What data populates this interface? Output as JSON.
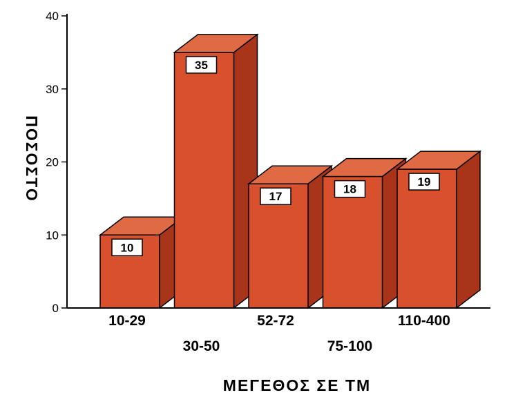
{
  "chart_data": {
    "type": "bar",
    "categories": [
      "10-29",
      "30-50",
      "52-72",
      "75-100",
      "110-400"
    ],
    "values": [
      10,
      35,
      17,
      18,
      19
    ],
    "data_labels": [
      "10",
      "35",
      "17",
      "18",
      "19"
    ],
    "title": "",
    "xlabel": "ΜΕΓΕΘΟΣ ΣΕ ΤΜ",
    "ylabel": "ΠΟΣΟΣΤΟ",
    "ylim": [
      0,
      40
    ],
    "yticks": [
      "0",
      "10",
      "20",
      "30",
      "40"
    ],
    "grid": false,
    "style": "3d-bar",
    "colors": {
      "front": "#d9512c",
      "top": "#e06a43",
      "side": "#a8341a"
    }
  }
}
